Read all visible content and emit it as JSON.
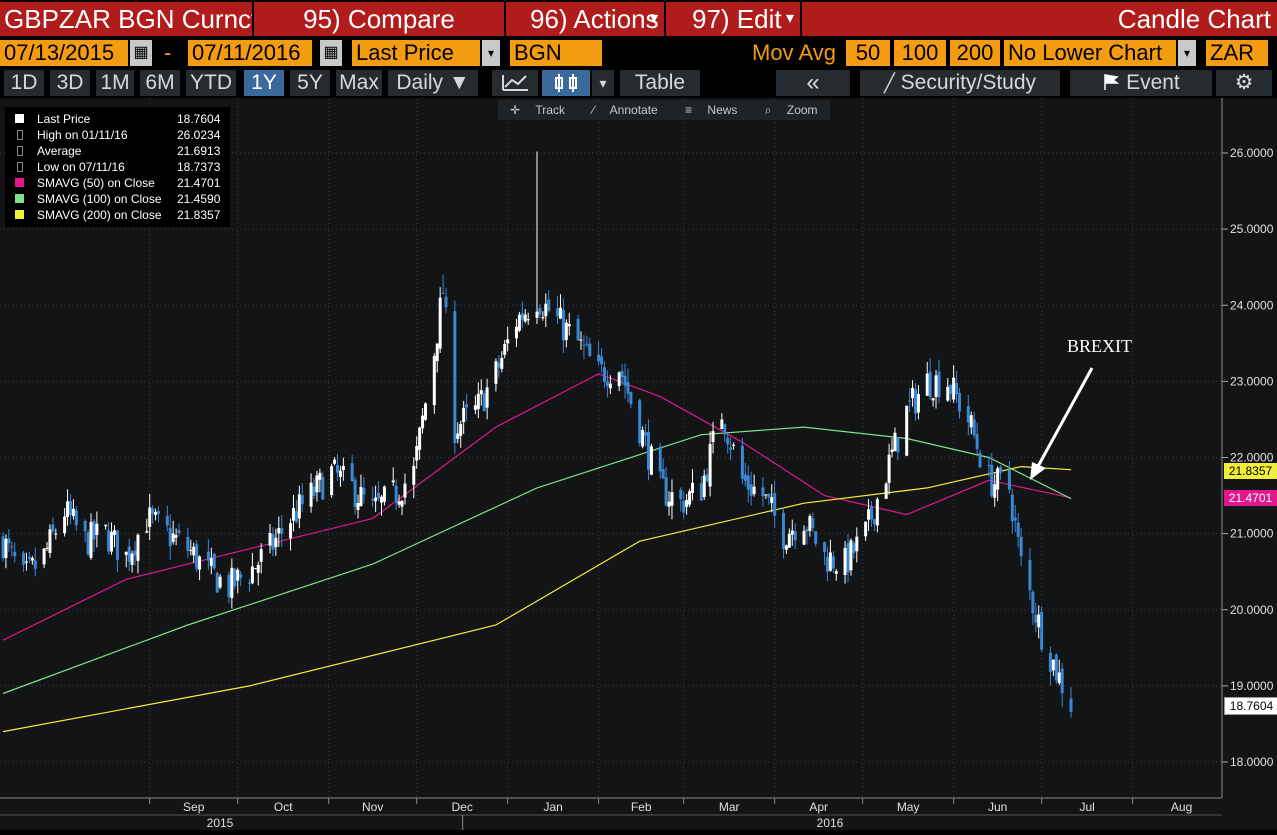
{
  "header": {
    "security": "GBPZAR BGN Curncy",
    "compare": "95) Compare",
    "actions": "96) Actions",
    "edit": "97) Edit",
    "chart_type": "Candle Chart",
    "caret": "▾"
  },
  "controls": {
    "start_date": "07/13/2015",
    "dash": "-",
    "end_date": "07/11/2016",
    "field": "Last Price",
    "source": "BGN",
    "mov_avg_label": "Mov Avg",
    "ma1": "50",
    "ma2": "100",
    "ma3": "200",
    "lower_chart": "No Lower Chart",
    "currency": "ZAR",
    "calendar_glyph": "▦",
    "dropdown_glyph": "▾"
  },
  "periods": [
    "1D",
    "3D",
    "1M",
    "6M",
    "YTD",
    "1Y",
    "5Y",
    "Max"
  ],
  "selected_period": "1Y",
  "toolbar": {
    "frequency": "Daily ▼",
    "line_glyph": "↘",
    "candle_glyph": "♢",
    "dropdown_glyph": "▾",
    "table": "Table",
    "collapse": "«",
    "security_study": "Security/Study",
    "event": "Event",
    "settings_glyph": "⚙"
  },
  "chart_tools": [
    "Track",
    "Annotate",
    "News",
    "Zoom"
  ],
  "legend": [
    {
      "name": "Last Price",
      "value": "18.7604",
      "color": "#ffffff"
    },
    {
      "name": "High on 01/11/16",
      "value": "26.0234",
      "color": ""
    },
    {
      "name": "Average",
      "value": "21.6913",
      "color": ""
    },
    {
      "name": "Low on 07/11/16",
      "value": "18.7373",
      "color": ""
    },
    {
      "name": "SMAVG (50) on Close",
      "value": "21.4701",
      "color": "#e0188c"
    },
    {
      "name": "SMAVG (100) on Close",
      "value": "21.4590",
      "color": "#7ee38a"
    },
    {
      "name": "SMAVG (200) on Close",
      "value": "21.8357",
      "color": "#f2ef3a"
    }
  ],
  "price_tags": [
    {
      "value": "21.8357",
      "bg": "#f2ef3a",
      "fg": "#000000"
    },
    {
      "value": "21.4701",
      "bg": "#e0188c",
      "fg": "#ffffff"
    },
    {
      "value": "18.7604",
      "bg": "#ffffff",
      "fg": "#000000"
    }
  ],
  "annotation": "BREXIT",
  "colors": {
    "header_red": "#b01c1c",
    "orange": "#f39c12",
    "candle_up": "#ffffff",
    "candle_down": "#3a87d4",
    "ma50": "#e0188c",
    "ma100": "#7ee38a",
    "ma200": "#f2ef3a"
  },
  "chart_data": {
    "type": "candlestick",
    "y_ticks": [
      "18.0000",
      "19.0000",
      "20.0000",
      "21.0000",
      "22.0000",
      "23.0000",
      "24.0000",
      "25.0000",
      "26.0000"
    ],
    "ylim": [
      17.7,
      26.6
    ],
    "x_months": [
      "Sep",
      "Oct",
      "Nov",
      "Dec",
      "Jan",
      "Feb",
      "Mar",
      "Apr",
      "May",
      "Jun",
      "Jul",
      "Aug"
    ],
    "x_years": [
      "2015",
      "2016"
    ],
    "close_path": [
      [
        "2015-07-13",
        20.9
      ],
      [
        "2015-07-20",
        20.4
      ],
      [
        "2015-07-27",
        20.7
      ],
      [
        "2015-08-03",
        21.3
      ],
      [
        "2015-08-10",
        20.9
      ],
      [
        "2015-08-17",
        21.0
      ],
      [
        "2015-08-24",
        20.7
      ],
      [
        "2015-08-31",
        21.2
      ],
      [
        "2015-09-07",
        21.0
      ],
      [
        "2015-09-14",
        20.8
      ],
      [
        "2015-09-21",
        20.5
      ],
      [
        "2015-09-28",
        20.3
      ],
      [
        "2015-10-05",
        20.5
      ],
      [
        "2015-10-12",
        20.8
      ],
      [
        "2015-10-19",
        21.2
      ],
      [
        "2015-10-26",
        21.5
      ],
      [
        "2015-11-02",
        21.8
      ],
      [
        "2015-11-09",
        21.6
      ],
      [
        "2015-11-16",
        21.3
      ],
      [
        "2015-11-23",
        21.5
      ],
      [
        "2015-11-30",
        21.8
      ],
      [
        "2015-12-07",
        23.4
      ],
      [
        "2015-12-10",
        24.2
      ],
      [
        "2015-12-14",
        22.4
      ],
      [
        "2015-12-21",
        22.6
      ],
      [
        "2015-12-28",
        23.1
      ],
      [
        "2016-01-04",
        23.8
      ],
      [
        "2016-01-11",
        24.1
      ],
      [
        "2016-01-18",
        23.8
      ],
      [
        "2016-01-25",
        23.5
      ],
      [
        "2016-02-01",
        23.1
      ],
      [
        "2016-02-08",
        23.2
      ],
      [
        "2016-02-15",
        22.4
      ],
      [
        "2016-02-22",
        21.6
      ],
      [
        "2016-02-29",
        21.4
      ],
      [
        "2016-03-07",
        21.6
      ],
      [
        "2016-03-14",
        22.6
      ],
      [
        "2016-03-21",
        21.7
      ],
      [
        "2016-03-28",
        21.5
      ],
      [
        "2016-04-04",
        21.0
      ],
      [
        "2016-04-11",
        21.2
      ],
      [
        "2016-04-18",
        20.7
      ],
      [
        "2016-04-25",
        20.6
      ],
      [
        "2016-05-02",
        21.0
      ],
      [
        "2016-05-09",
        21.8
      ],
      [
        "2016-05-16",
        22.6
      ],
      [
        "2016-05-23",
        23.0
      ],
      [
        "2016-05-30",
        23.0
      ],
      [
        "2016-06-06",
        22.5
      ],
      [
        "2016-06-13",
        21.7
      ],
      [
        "2016-06-20",
        21.6
      ],
      [
        "2016-06-24",
        20.6
      ],
      [
        "2016-07-01",
        19.7
      ],
      [
        "2016-07-06",
        19.2
      ],
      [
        "2016-07-11",
        18.76
      ]
    ],
    "ma_paths": [
      {
        "name": "SMAVG (50) on Close",
        "points": [
          [
            "2015-07-13",
            19.6
          ],
          [
            "2015-08-24",
            20.4
          ],
          [
            "2015-10-05",
            20.8
          ],
          [
            "2015-11-16",
            21.2
          ],
          [
            "2015-12-28",
            22.4
          ],
          [
            "2016-02-01",
            23.1
          ],
          [
            "2016-02-22",
            22.8
          ],
          [
            "2016-03-21",
            22.2
          ],
          [
            "2016-04-18",
            21.5
          ],
          [
            "2016-05-16",
            21.25
          ],
          [
            "2016-06-13",
            21.7
          ],
          [
            "2016-07-11",
            21.47
          ]
        ]
      },
      {
        "name": "SMAVG (100) on Close",
        "points": [
          [
            "2015-07-13",
            18.9
          ],
          [
            "2015-09-14",
            19.8
          ],
          [
            "2015-11-16",
            20.6
          ],
          [
            "2016-01-11",
            21.6
          ],
          [
            "2016-03-07",
            22.3
          ],
          [
            "2016-04-11",
            22.4
          ],
          [
            "2016-05-16",
            22.25
          ],
          [
            "2016-06-13",
            22.0
          ],
          [
            "2016-07-11",
            21.46
          ]
        ]
      },
      {
        "name": "SMAVG (200) on Close",
        "points": [
          [
            "2015-07-13",
            18.4
          ],
          [
            "2015-10-05",
            19.0
          ],
          [
            "2015-12-28",
            19.8
          ],
          [
            "2016-02-15",
            20.9
          ],
          [
            "2016-04-11",
            21.4
          ],
          [
            "2016-05-23",
            21.6
          ],
          [
            "2016-06-24",
            21.88
          ],
          [
            "2016-07-11",
            21.84
          ]
        ]
      }
    ]
  }
}
